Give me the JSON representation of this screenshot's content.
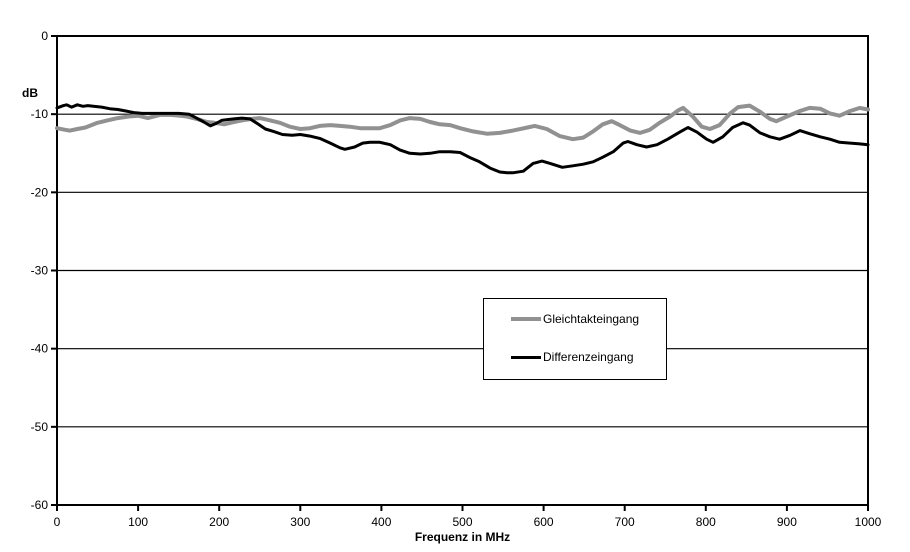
{
  "chart_data": {
    "type": "line",
    "title": "",
    "ylabel": "dB",
    "xlabel": "Frequenz in MHz",
    "xlim": [
      0,
      1000
    ],
    "ylim": [
      -60,
      0
    ],
    "x_ticks": [
      0,
      100,
      200,
      300,
      400,
      500,
      600,
      700,
      800,
      900,
      1000
    ],
    "y_ticks": [
      0,
      -10,
      -20,
      -30,
      -40,
      -50,
      -60
    ],
    "grid": "horizontal-only",
    "legend_position": "center",
    "axis_color": "#000000",
    "background": "#ffffff",
    "series": [
      {
        "name": "Gleichtakteingang",
        "color": "#919191",
        "stroke_width": 4,
        "points": [
          [
            0,
            -11.8
          ],
          [
            10,
            -12.0
          ],
          [
            16,
            -12.1
          ],
          [
            25,
            -11.9
          ],
          [
            35,
            -11.7
          ],
          [
            50,
            -11.1
          ],
          [
            62,
            -10.8
          ],
          [
            75,
            -10.5
          ],
          [
            88,
            -10.3
          ],
          [
            100,
            -10.2
          ],
          [
            112,
            -10.5
          ],
          [
            127,
            -10.1
          ],
          [
            140,
            -10.1
          ],
          [
            152,
            -10.2
          ],
          [
            160,
            -10.3
          ],
          [
            168,
            -10.5
          ],
          [
            175,
            -10.7
          ],
          [
            185,
            -11.0
          ],
          [
            194,
            -11.1
          ],
          [
            206,
            -11.3
          ],
          [
            218,
            -11.0
          ],
          [
            228,
            -10.8
          ],
          [
            240,
            -10.6
          ],
          [
            250,
            -10.5
          ],
          [
            263,
            -10.8
          ],
          [
            275,
            -11.1
          ],
          [
            287,
            -11.6
          ],
          [
            300,
            -11.9
          ],
          [
            312,
            -11.8
          ],
          [
            324,
            -11.5
          ],
          [
            337,
            -11.4
          ],
          [
            349,
            -11.5
          ],
          [
            361,
            -11.6
          ],
          [
            374,
            -11.8
          ],
          [
            386,
            -11.8
          ],
          [
            398,
            -11.8
          ],
          [
            411,
            -11.4
          ],
          [
            423,
            -10.8
          ],
          [
            435,
            -10.5
          ],
          [
            448,
            -10.6
          ],
          [
            460,
            -11.0
          ],
          [
            472,
            -11.3
          ],
          [
            485,
            -11.4
          ],
          [
            497,
            -11.8
          ],
          [
            513,
            -12.2
          ],
          [
            530,
            -12.5
          ],
          [
            546,
            -12.4
          ],
          [
            562,
            -12.1
          ],
          [
            580,
            -11.7
          ],
          [
            589,
            -11.5
          ],
          [
            604,
            -11.9
          ],
          [
            620,
            -12.8
          ],
          [
            636,
            -13.2
          ],
          [
            649,
            -13.0
          ],
          [
            661,
            -12.2
          ],
          [
            673,
            -11.3
          ],
          [
            684,
            -10.9
          ],
          [
            694,
            -11.4
          ],
          [
            707,
            -12.1
          ],
          [
            719,
            -12.4
          ],
          [
            731,
            -12.0
          ],
          [
            743,
            -11.1
          ],
          [
            756,
            -10.3
          ],
          [
            766,
            -9.5
          ],
          [
            772,
            -9.2
          ],
          [
            784,
            -10.3
          ],
          [
            795,
            -11.6
          ],
          [
            805,
            -11.9
          ],
          [
            817,
            -11.4
          ],
          [
            830,
            -9.9
          ],
          [
            840,
            -9.1
          ],
          [
            854,
            -8.9
          ],
          [
            867,
            -9.7
          ],
          [
            879,
            -10.6
          ],
          [
            887,
            -10.9
          ],
          [
            900,
            -10.3
          ],
          [
            916,
            -9.6
          ],
          [
            928,
            -9.2
          ],
          [
            941,
            -9.3
          ],
          [
            953,
            -9.9
          ],
          [
            965,
            -10.2
          ],
          [
            978,
            -9.6
          ],
          [
            990,
            -9.2
          ],
          [
            1000,
            -9.4
          ]
        ]
      },
      {
        "name": "Differenzeingang",
        "color": "#000000",
        "stroke_width": 3,
        "points": [
          [
            0,
            -9.2
          ],
          [
            8,
            -8.9
          ],
          [
            12,
            -8.8
          ],
          [
            18,
            -9.1
          ],
          [
            25,
            -8.8
          ],
          [
            32,
            -9.0
          ],
          [
            38,
            -8.9
          ],
          [
            45,
            -9.0
          ],
          [
            55,
            -9.1
          ],
          [
            65,
            -9.3
          ],
          [
            75,
            -9.4
          ],
          [
            85,
            -9.6
          ],
          [
            95,
            -9.8
          ],
          [
            105,
            -9.9
          ],
          [
            120,
            -9.9
          ],
          [
            135,
            -9.9
          ],
          [
            150,
            -9.9
          ],
          [
            163,
            -10.0
          ],
          [
            172,
            -10.5
          ],
          [
            181,
            -11.0
          ],
          [
            189,
            -11.5
          ],
          [
            196,
            -11.2
          ],
          [
            203,
            -10.8
          ],
          [
            210,
            -10.7
          ],
          [
            218,
            -10.6
          ],
          [
            228,
            -10.5
          ],
          [
            238,
            -10.6
          ],
          [
            247,
            -11.2
          ],
          [
            257,
            -11.9
          ],
          [
            267,
            -12.2
          ],
          [
            278,
            -12.6
          ],
          [
            290,
            -12.7
          ],
          [
            300,
            -12.6
          ],
          [
            312,
            -12.8
          ],
          [
            324,
            -13.1
          ],
          [
            337,
            -13.7
          ],
          [
            349,
            -14.3
          ],
          [
            355,
            -14.5
          ],
          [
            367,
            -14.2
          ],
          [
            377,
            -13.7
          ],
          [
            386,
            -13.6
          ],
          [
            398,
            -13.6
          ],
          [
            411,
            -13.9
          ],
          [
            423,
            -14.6
          ],
          [
            435,
            -15.0
          ],
          [
            448,
            -15.1
          ],
          [
            460,
            -15.0
          ],
          [
            472,
            -14.8
          ],
          [
            485,
            -14.8
          ],
          [
            497,
            -14.9
          ],
          [
            510,
            -15.6
          ],
          [
            521,
            -16.1
          ],
          [
            534,
            -16.9
          ],
          [
            546,
            -17.4
          ],
          [
            555,
            -17.5
          ],
          [
            562,
            -17.5
          ],
          [
            575,
            -17.3
          ],
          [
            587,
            -16.3
          ],
          [
            598,
            -16.0
          ],
          [
            608,
            -16.3
          ],
          [
            623,
            -16.8
          ],
          [
            636,
            -16.6
          ],
          [
            649,
            -16.4
          ],
          [
            661,
            -16.1
          ],
          [
            673,
            -15.5
          ],
          [
            686,
            -14.8
          ],
          [
            698,
            -13.7
          ],
          [
            704,
            -13.5
          ],
          [
            715,
            -13.9
          ],
          [
            727,
            -14.2
          ],
          [
            740,
            -13.9
          ],
          [
            753,
            -13.2
          ],
          [
            768,
            -12.3
          ],
          [
            778,
            -11.7
          ],
          [
            789,
            -12.3
          ],
          [
            801,
            -13.2
          ],
          [
            809,
            -13.6
          ],
          [
            821,
            -12.9
          ],
          [
            833,
            -11.7
          ],
          [
            846,
            -11.1
          ],
          [
            854,
            -11.4
          ],
          [
            867,
            -12.4
          ],
          [
            879,
            -12.9
          ],
          [
            891,
            -13.2
          ],
          [
            904,
            -12.7
          ],
          [
            916,
            -12.1
          ],
          [
            928,
            -12.5
          ],
          [
            941,
            -12.9
          ],
          [
            953,
            -13.2
          ],
          [
            965,
            -13.6
          ],
          [
            978,
            -13.7
          ],
          [
            990,
            -13.8
          ],
          [
            1000,
            -13.9
          ]
        ]
      }
    ]
  }
}
